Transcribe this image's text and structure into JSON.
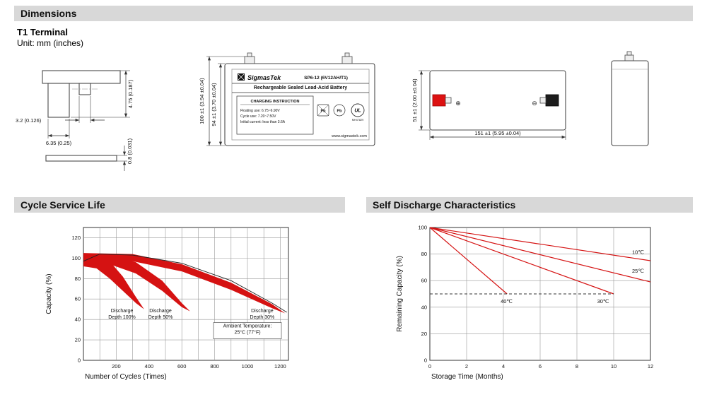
{
  "sections": {
    "dimensions": "Dimensions",
    "cycle_life": "Cycle Service Life",
    "self_discharge": "Self Discharge Characteristics"
  },
  "header": {
    "terminal_title": "T1 Terminal",
    "unit_label": "Unit: mm (inches)"
  },
  "terminal_view": {
    "dim_height": "4.75 (0.187)",
    "dim_slot": "3.2 (0.126)",
    "dim_tab": "6.35 (0.25)",
    "dim_thickness": "0.8 (0.031)"
  },
  "front_view": {
    "dim_total_height": "100 ±1 (3.94 ±0.04)",
    "dim_case_height": "94 ±1 (3.70 ±0.04)",
    "brand": "SigmasTek",
    "model": "SP6-12 (6V12AH/T1)",
    "subtitle": "Rechargeable Sealed Lead-Acid Battery",
    "charging_title": "CHARGING INSTRUCTION",
    "charging_lines": [
      "Floating use: 6.75~6.90V",
      "Cycle use: 7.20~7.50V",
      "Initial current: less than 3.6A"
    ],
    "pb": "Pb",
    "ul": "UL",
    "ul_code": "MH47829",
    "website": "www.sigmastek.com"
  },
  "side_view": {
    "dim_height": "51 ±1 (2.00 ±0.04)",
    "dim_length": "151 ±1 (5.95 ±0.04)",
    "positive": "⊕",
    "negative": "⊖"
  },
  "colors": {
    "band_red": "#d51212",
    "header_gray": "#d8d8d8"
  },
  "chart_data": [
    {
      "type": "area",
      "title": "Cycle Service Life",
      "xlabel": "Number of Cycles (Times)",
      "ylabel": "Capacity (%)",
      "xlim": [
        0,
        1250
      ],
      "ylim": [
        0,
        130
      ],
      "xgrid": 100,
      "ygrid": 20,
      "xticks": [
        200,
        400,
        600,
        800,
        1000,
        1200
      ],
      "yticks": [
        0,
        20,
        40,
        60,
        80,
        100,
        120
      ],
      "margins": {
        "l": 58,
        "r": 18,
        "t": 12,
        "b": 32
      },
      "bands": [
        {
          "name": "band-dod-100",
          "color": "#d51212",
          "upper": [
            [
              0,
              101
            ],
            [
              80,
              103
            ],
            [
              160,
              97
            ],
            [
              240,
              82
            ],
            [
              320,
              62
            ],
            [
              370,
              50
            ]
          ],
          "lower": [
            [
              0,
              92
            ],
            [
              80,
              90
            ],
            [
              160,
              80
            ],
            [
              240,
              68
            ],
            [
              320,
              56
            ],
            [
              370,
              50
            ]
          ]
        },
        {
          "name": "band-dod-50",
          "color": "#d51212",
          "upper": [
            [
              0,
              103
            ],
            [
              160,
              104
            ],
            [
              320,
              96
            ],
            [
              480,
              78
            ],
            [
              600,
              56
            ],
            [
              650,
              48
            ]
          ],
          "lower": [
            [
              0,
              96
            ],
            [
              160,
              94
            ],
            [
              320,
              85
            ],
            [
              480,
              68
            ],
            [
              600,
              52
            ],
            [
              650,
              48
            ]
          ]
        },
        {
          "name": "band-dod-30",
          "color": "#d51212",
          "upper": [
            [
              0,
              105
            ],
            [
              300,
              104
            ],
            [
              600,
              94
            ],
            [
              900,
              76
            ],
            [
              1150,
              55
            ],
            [
              1230,
              46
            ]
          ],
          "lower": [
            [
              0,
              99
            ],
            [
              300,
              97
            ],
            [
              600,
              87
            ],
            [
              900,
              69
            ],
            [
              1150,
              51
            ],
            [
              1230,
              46
            ]
          ]
        }
      ],
      "series": [
        {
          "name": "envelope",
          "color": "#222",
          "width": 0.9,
          "points": [
            [
              0,
              97
            ],
            [
              100,
              104
            ],
            [
              300,
              103
            ],
            [
              600,
              95
            ],
            [
              900,
              78
            ],
            [
              1150,
              56
            ],
            [
              1240,
              47
            ]
          ]
        }
      ],
      "annotations": [
        {
          "lines": [
            "Discharge",
            "Depth 100%"
          ],
          "x": 235,
          "y": 44
        },
        {
          "lines": [
            "Discharge",
            "Depth 50%"
          ],
          "x": 470,
          "y": 44
        },
        {
          "lines": [
            "Discharge",
            "Depth 30%"
          ],
          "x": 1090,
          "y": 44
        },
        {
          "lines": [
            "Ambient Temperature:",
            "25°C (77°F)"
          ],
          "x": 1000,
          "y": 29,
          "box": true
        }
      ]
    },
    {
      "type": "line",
      "title": "Self Discharge Characteristics",
      "xlabel": "Storage Time (Months)",
      "ylabel": "Remaining Capacity (%)",
      "xlim": [
        0,
        12
      ],
      "ylim": [
        0,
        100
      ],
      "xgrid": 2,
      "ygrid": 20,
      "xticks": [
        0,
        2,
        4,
        6,
        8,
        10,
        12
      ],
      "yticks": [
        0,
        20,
        40,
        60,
        80,
        100
      ],
      "margins": {
        "l": 52,
        "r": 16,
        "t": 12,
        "b": 32
      },
      "series": [
        {
          "name": "temp-10c",
          "label": "10℃",
          "color": "#d51212",
          "points": [
            [
              0,
              100
            ],
            [
              12,
              75
            ]
          ],
          "label_pos": [
            11.0,
            80
          ]
        },
        {
          "name": "temp-25c",
          "label": "25℃",
          "color": "#d51212",
          "points": [
            [
              0,
              100
            ],
            [
              12,
              59
            ]
          ],
          "label_pos": [
            11.0,
            66
          ]
        },
        {
          "name": "temp-30c",
          "label": "30℃",
          "color": "#d51212",
          "points": [
            [
              0,
              100
            ],
            [
              10,
              50
            ]
          ],
          "label_pos": [
            9.1,
            43
          ]
        },
        {
          "name": "temp-40c",
          "label": "40℃",
          "color": "#d51212",
          "points": [
            [
              0,
              100
            ],
            [
              4.2,
              50
            ]
          ],
          "label_pos": [
            3.85,
            43
          ]
        },
        {
          "name": "threshold-dashed",
          "color": "#333",
          "width": 0.9,
          "dash": "4 3",
          "points": [
            [
              0,
              50
            ],
            [
              10,
              50
            ]
          ]
        }
      ],
      "annotations": []
    }
  ]
}
